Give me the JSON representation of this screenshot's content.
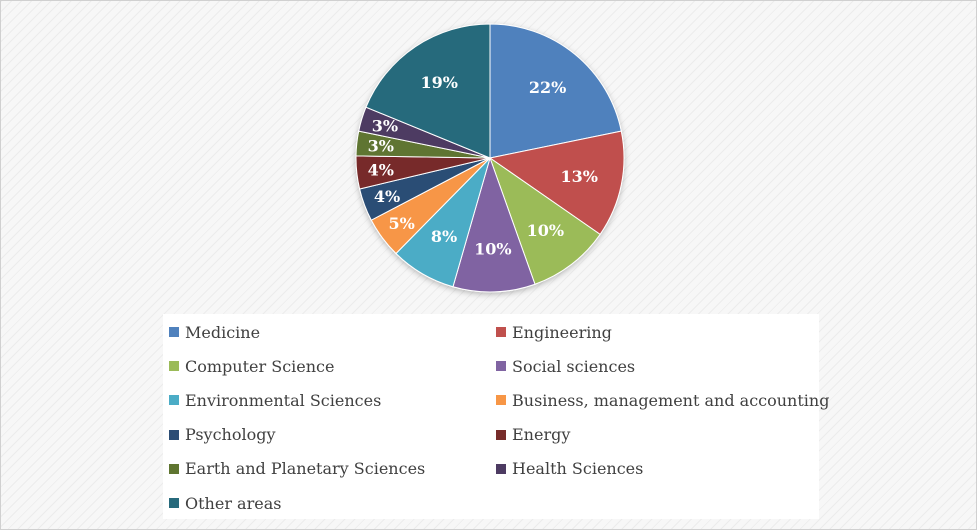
{
  "chart_data": {
    "type": "pie",
    "labels": [
      "Medicine",
      "Engineering",
      "Computer Science",
      "Social sciences",
      "Environmental Sciences",
      "Business, management and accounting",
      "Psychology",
      "Energy",
      "Earth and Planetary Sciences",
      "Health Sciences",
      "Other areas"
    ],
    "values": [
      22,
      13,
      10,
      10,
      8,
      5,
      4,
      4,
      3,
      3,
      19
    ],
    "data_labels": [
      "22%",
      "13%",
      "10%",
      "10%",
      "8%",
      "5%",
      "4%",
      "4%",
      "3%",
      "3%",
      "19%"
    ],
    "colors": [
      "#4F81BD",
      "#C0504D",
      "#9BBB59",
      "#8064A2",
      "#4BACC6",
      "#F79646",
      "#2C4D75",
      "#772C2A",
      "#5F7530",
      "#4D3B62",
      "#276A7C"
    ],
    "legend_position": "bottom",
    "start": "12 o'clock, clockwise"
  }
}
